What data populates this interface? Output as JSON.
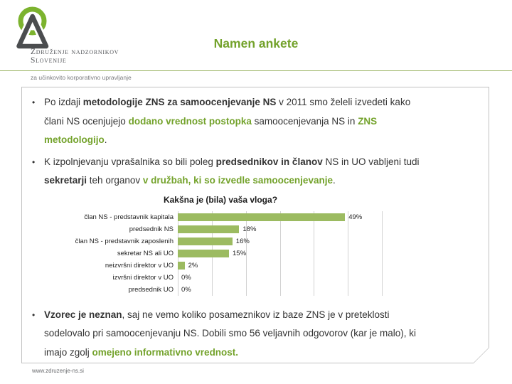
{
  "slide": {
    "title": "Namen ankete",
    "footer_url": "www.zdruzenje-ns.si"
  },
  "logo": {
    "org_line1": "Združenje nadzornikov",
    "org_line2": "Slovenije",
    "tagline": "za učinkovito korporativno upravljanje"
  },
  "colors": {
    "green_text": "#73A22B",
    "bar_green": "#9CBB61",
    "logo_green": "#7CB32E",
    "divider_green": "#9DB566",
    "triangle_gray": "#4B4D4F",
    "box_border": "#C2C2C2",
    "gridline": "#D2D2D2"
  },
  "bullets": [
    {
      "lines": [
        [
          {
            "t": "Po izdaji "
          },
          {
            "t": "metodologije ZNS za samoocenjevanje NS",
            "b": true
          },
          {
            "t": " v 2011 smo želeli izvedeti kako"
          }
        ],
        [
          {
            "t": "člani NS ocenjujejo "
          },
          {
            "t": "dodano vrednost postopka",
            "b": true,
            "g": true
          },
          {
            "t": " samoocenjevanja NS in "
          },
          {
            "t": "ZNS",
            "b": true,
            "g": true
          }
        ],
        [
          {
            "t": "metodologijo",
            "b": true,
            "g": true
          },
          {
            "t": "."
          }
        ]
      ]
    },
    {
      "lines": [
        [
          {
            "t": "K izpolnjevanju vprašalnika so bili poleg "
          },
          {
            "t": "predsednikov in članov",
            "b": true
          },
          {
            "t": " NS in UO vabljeni tudi"
          }
        ],
        [
          {
            "t": "sekretarji",
            "b": true
          },
          {
            "t": " teh organov "
          },
          {
            "t": "v družbah, ki so izvedle samoocenjevanje",
            "b": true,
            "g": true
          },
          {
            "t": "."
          }
        ]
      ]
    },
    {
      "lines": [
        [
          {
            "t": "Vzorec je neznan",
            "b": true
          },
          {
            "t": ", saj ne vemo koliko posameznikov iz baze ZNS je v preteklosti"
          }
        ],
        [
          {
            "t": "sodelovalo pri samoocenjevanju NS. Dobili smo 56 veljavnih odgovorov (kar je malo), ki"
          }
        ],
        [
          {
            "t": "imajo zgolj "
          },
          {
            "t": "omejeno informativno vrednost.",
            "b": true,
            "g": true
          }
        ]
      ]
    }
  ],
  "chart_data": {
    "type": "bar",
    "orientation": "horizontal",
    "title": "Kakšna je (bila) vaša vloga?",
    "categories": [
      "član NS - predstavnik kapitala",
      "predsednik NS",
      "član NS - predstavnik zaposlenih",
      "sekretar NS ali UO",
      "neizvršni direktor v UO",
      "izvršni direktor v UO",
      "predsednik UO"
    ],
    "values": [
      49,
      18,
      16,
      15,
      2,
      0,
      0
    ],
    "value_labels": [
      "49%",
      "18%",
      "16%",
      "15%",
      "2%",
      "0%",
      "0%"
    ],
    "xlim": [
      0,
      60
    ],
    "grid_step": 10,
    "grid": true,
    "legend": false,
    "bar_color": "#9CBB61"
  }
}
